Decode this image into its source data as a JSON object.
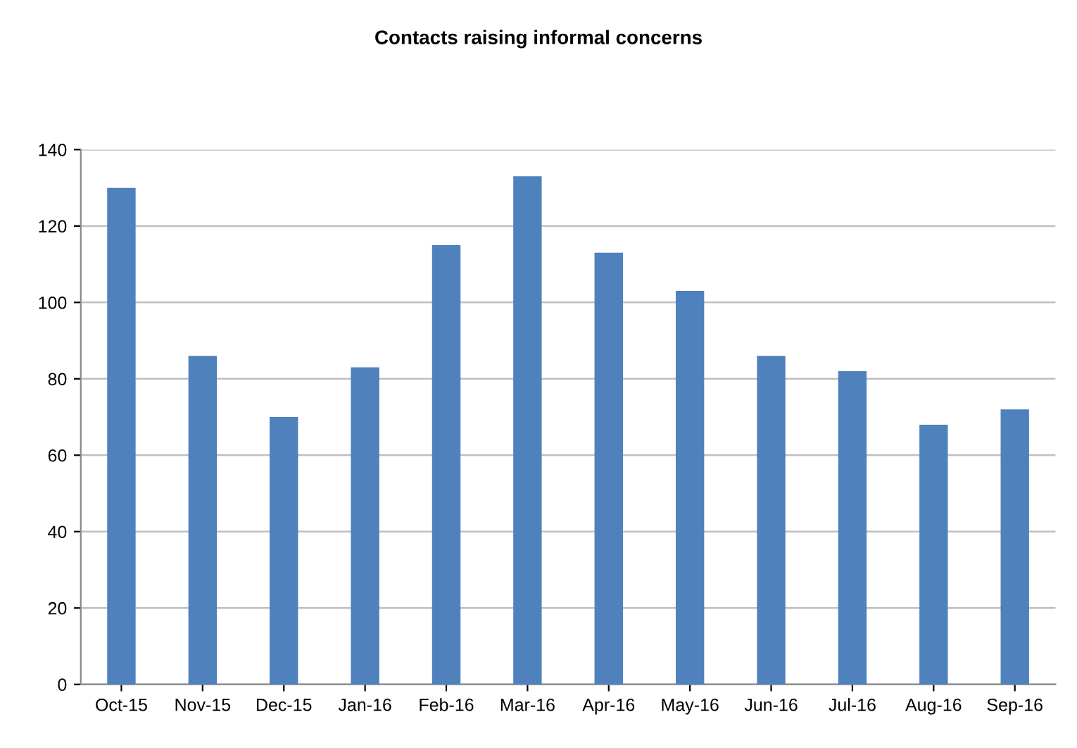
{
  "chart_data": {
    "type": "bar",
    "title": "Contacts raising informal concerns",
    "categories": [
      "Oct-15",
      "Nov-15",
      "Dec-15",
      "Jan-16",
      "Feb-16",
      "Mar-16",
      "Apr-16",
      "May-16",
      "Jun-16",
      "Jul-16",
      "Aug-16",
      "Sep-16"
    ],
    "values": [
      130,
      86,
      70,
      83,
      115,
      133,
      113,
      103,
      86,
      82,
      68,
      72
    ],
    "color": "#4f81bd",
    "ylim": [
      0,
      140
    ],
    "yticks": [
      0,
      20,
      40,
      60,
      80,
      100,
      120,
      140
    ],
    "grid": "y",
    "legend": false
  }
}
